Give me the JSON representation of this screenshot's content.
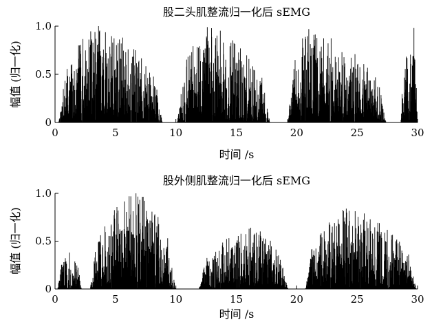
{
  "chart_data": [
    {
      "type": "line",
      "title": "股二头肌整流归一化后 sEMG",
      "xlabel": "时间 /s",
      "ylabel": "幅值 (归一化)",
      "xlim": [
        0,
        30
      ],
      "ylim": [
        0,
        1.0
      ],
      "xticks": [
        "0",
        "5",
        "10",
        "15",
        "20",
        "25",
        "30"
      ],
      "yticks": [
        "0",
        "0.5",
        "1.0"
      ],
      "grid": false,
      "series": [
        {
          "bursts": [
            {
              "start": 0.3,
              "end": 8.9,
              "peak": 1.0,
              "peak_time": 3.6
            },
            {
              "start": 10.1,
              "end": 17.8,
              "peak": 0.99,
              "peak_time": 12.6
            },
            {
              "start": 19.2,
              "end": 27.4,
              "peak": 0.97,
              "peak_time": 21.0
            },
            {
              "start": 28.6,
              "end": 30.0,
              "peak": 0.98,
              "peak_time": 29.7
            }
          ]
        }
      ]
    },
    {
      "type": "line",
      "title": "股外侧肌整流归一化后 sEMG",
      "xlabel": "时间 /s",
      "ylabel": "幅值 (归一化)",
      "xlim": [
        0,
        30
      ],
      "ylim": [
        0,
        1.0
      ],
      "xticks": [
        "0",
        "5",
        "10",
        "15",
        "20",
        "25",
        "30"
      ],
      "yticks": [
        "0",
        "0.5",
        "1.0"
      ],
      "grid": false,
      "series": [
        {
          "bursts": [
            {
              "start": 0.2,
              "end": 2.2,
              "peak": 0.38,
              "peak_time": 1.2
            },
            {
              "start": 2.9,
              "end": 10.0,
              "peak": 1.0,
              "peak_time": 6.7
            },
            {
              "start": 11.9,
              "end": 19.3,
              "peak": 0.64,
              "peak_time": 16.2
            },
            {
              "start": 20.7,
              "end": 29.9,
              "peak": 0.84,
              "peak_time": 24.1
            }
          ]
        }
      ]
    }
  ]
}
